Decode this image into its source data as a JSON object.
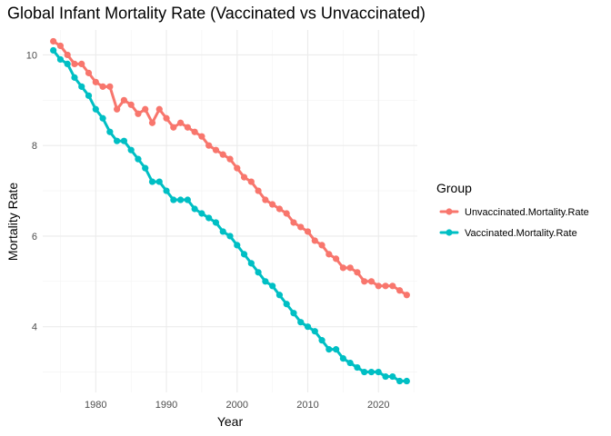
{
  "chart_data": {
    "type": "line",
    "title": "Global Infant Mortality Rate (Vaccinated vs Unvaccinated)",
    "xlabel": "Year",
    "ylabel": "Mortality Rate",
    "xlim": [
      1972.5,
      2025.5
    ],
    "ylim": [
      2.55,
      10.55
    ],
    "x_ticks": [
      1980,
      1990,
      2000,
      2010,
      2020
    ],
    "y_ticks": [
      4,
      6,
      8,
      10
    ],
    "grid": true,
    "legend": {
      "title": "Group",
      "placement": "right"
    },
    "x": [
      1974,
      1975,
      1976,
      1977,
      1978,
      1979,
      1980,
      1981,
      1982,
      1983,
      1984,
      1985,
      1986,
      1987,
      1988,
      1989,
      1990,
      1991,
      1992,
      1993,
      1994,
      1995,
      1996,
      1997,
      1998,
      1999,
      2000,
      2001,
      2002,
      2003,
      2004,
      2005,
      2006,
      2007,
      2008,
      2009,
      2010,
      2011,
      2012,
      2013,
      2014,
      2015,
      2016,
      2017,
      2018,
      2019,
      2020,
      2021,
      2022,
      2023,
      2024
    ],
    "series": [
      {
        "name": "Unvaccinated.Mortality.Rate",
        "color": "#f8766d",
        "values": [
          10.3,
          10.2,
          10.0,
          9.8,
          9.8,
          9.6,
          9.4,
          9.3,
          9.3,
          8.8,
          9.0,
          8.9,
          8.7,
          8.8,
          8.5,
          8.8,
          8.6,
          8.4,
          8.5,
          8.4,
          8.3,
          8.2,
          8.0,
          7.9,
          7.8,
          7.7,
          7.5,
          7.3,
          7.2,
          7.0,
          6.8,
          6.7,
          6.6,
          6.5,
          6.3,
          6.2,
          6.1,
          5.9,
          5.8,
          5.6,
          5.5,
          5.3,
          5.3,
          5.2,
          5.0,
          5.0,
          4.9,
          4.9,
          4.9,
          4.8,
          4.7
        ]
      },
      {
        "name": "Vaccinated.Mortality.Rate",
        "color": "#00bfc4",
        "values": [
          10.1,
          9.9,
          9.8,
          9.5,
          9.3,
          9.1,
          8.8,
          8.6,
          8.3,
          8.1,
          8.1,
          7.9,
          7.7,
          7.5,
          7.2,
          7.2,
          7.0,
          6.8,
          6.8,
          6.8,
          6.6,
          6.5,
          6.4,
          6.3,
          6.1,
          6.0,
          5.8,
          5.6,
          5.4,
          5.2,
          5.0,
          4.9,
          4.7,
          4.5,
          4.3,
          4.1,
          4.0,
          3.9,
          3.7,
          3.5,
          3.5,
          3.3,
          3.2,
          3.1,
          3.0,
          3.0,
          3.0,
          2.9,
          2.9,
          2.8,
          2.8
        ]
      }
    ]
  }
}
